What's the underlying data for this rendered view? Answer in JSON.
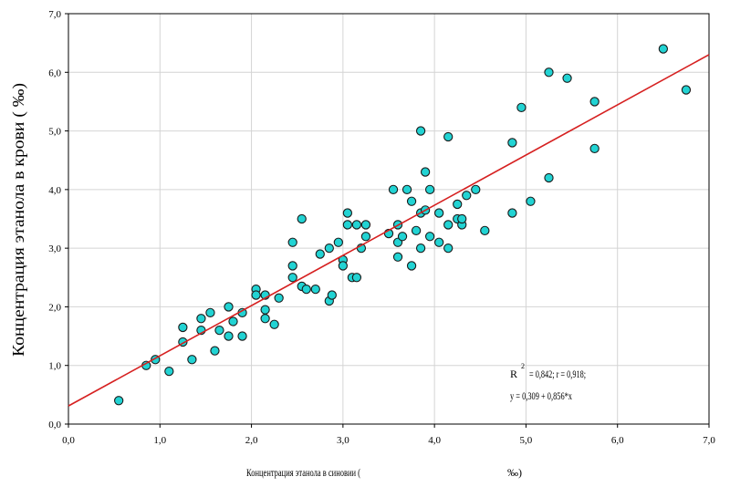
{
  "chart_data": {
    "type": "scatter",
    "title": "",
    "xlabel": "Концентрация этанола в синовии (",
    "xlabel_unit": "‰)",
    "ylabel": "Концентрация этанола в крови ( ‰)",
    "xlim": [
      0,
      7
    ],
    "ylim": [
      0,
      7
    ],
    "x_ticks": [
      "0,0",
      "1,0",
      "2,0",
      "3,0",
      "4,0",
      "5,0",
      "6,0",
      "7,0"
    ],
    "y_ticks": [
      "0,0",
      "1,0",
      "2,0",
      "3,0",
      "4,0",
      "5,0",
      "6,0",
      "7,0"
    ],
    "grid": true,
    "point_color": "#22d3d3",
    "line_color": "#d62020",
    "regression": {
      "intercept": 0.309,
      "slope": 0.856
    },
    "annotation": {
      "r2_prefix": "R",
      "r2_sup": "2",
      "r2_text": "= 0,842; r = 0,918;",
      "equation": "y = 0,309 + 0,856*x"
    },
    "points": [
      [
        0.55,
        0.4
      ],
      [
        0.85,
        1.0
      ],
      [
        0.95,
        1.1
      ],
      [
        1.1,
        0.9
      ],
      [
        1.25,
        1.65
      ],
      [
        1.25,
        1.4
      ],
      [
        1.35,
        1.1
      ],
      [
        1.45,
        1.6
      ],
      [
        1.45,
        1.8
      ],
      [
        1.55,
        1.9
      ],
      [
        1.6,
        1.25
      ],
      [
        1.65,
        1.6
      ],
      [
        1.75,
        2.0
      ],
      [
        1.75,
        1.5
      ],
      [
        1.8,
        1.75
      ],
      [
        1.9,
        1.5
      ],
      [
        1.9,
        1.9
      ],
      [
        2.05,
        2.3
      ],
      [
        2.05,
        2.2
      ],
      [
        2.15,
        2.2
      ],
      [
        2.15,
        1.95
      ],
      [
        2.15,
        1.8
      ],
      [
        2.25,
        1.7
      ],
      [
        2.3,
        2.15
      ],
      [
        2.45,
        2.5
      ],
      [
        2.45,
        2.7
      ],
      [
        2.45,
        3.1
      ],
      [
        2.55,
        3.5
      ],
      [
        2.55,
        2.35
      ],
      [
        2.6,
        2.3
      ],
      [
        2.7,
        2.3
      ],
      [
        2.75,
        2.9
      ],
      [
        2.85,
        2.1
      ],
      [
        2.85,
        3.0
      ],
      [
        2.88,
        2.2
      ],
      [
        2.95,
        3.1
      ],
      [
        3.0,
        2.8
      ],
      [
        3.0,
        2.7
      ],
      [
        3.05,
        3.4
      ],
      [
        3.05,
        3.6
      ],
      [
        3.1,
        2.5
      ],
      [
        3.15,
        2.5
      ],
      [
        3.15,
        3.4
      ],
      [
        3.2,
        3.0
      ],
      [
        3.25,
        3.2
      ],
      [
        3.25,
        3.4
      ],
      [
        3.5,
        3.25
      ],
      [
        3.55,
        4.0
      ],
      [
        3.6,
        3.4
      ],
      [
        3.6,
        3.1
      ],
      [
        3.6,
        2.85
      ],
      [
        3.65,
        3.2
      ],
      [
        3.7,
        4.0
      ],
      [
        3.75,
        3.8
      ],
      [
        3.75,
        2.7
      ],
      [
        3.8,
        3.3
      ],
      [
        3.85,
        3.6
      ],
      [
        3.85,
        3.0
      ],
      [
        3.85,
        5.0
      ],
      [
        3.9,
        3.65
      ],
      [
        3.9,
        4.3
      ],
      [
        3.95,
        3.2
      ],
      [
        3.95,
        4.0
      ],
      [
        4.05,
        3.6
      ],
      [
        4.05,
        3.1
      ],
      [
        4.15,
        3.0
      ],
      [
        4.15,
        3.4
      ],
      [
        4.15,
        4.9
      ],
      [
        4.25,
        3.75
      ],
      [
        4.25,
        3.5
      ],
      [
        4.3,
        3.4
      ],
      [
        4.3,
        3.5
      ],
      [
        4.35,
        3.9
      ],
      [
        4.45,
        4.0
      ],
      [
        4.55,
        3.3
      ],
      [
        4.85,
        4.8
      ],
      [
        4.85,
        3.6
      ],
      [
        4.95,
        5.4
      ],
      [
        5.05,
        3.8
      ],
      [
        5.25,
        4.2
      ],
      [
        5.25,
        6.0
      ],
      [
        5.45,
        5.9
      ],
      [
        5.75,
        4.7
      ],
      [
        5.75,
        5.5
      ],
      [
        6.5,
        6.4
      ],
      [
        6.75,
        5.7
      ]
    ]
  }
}
